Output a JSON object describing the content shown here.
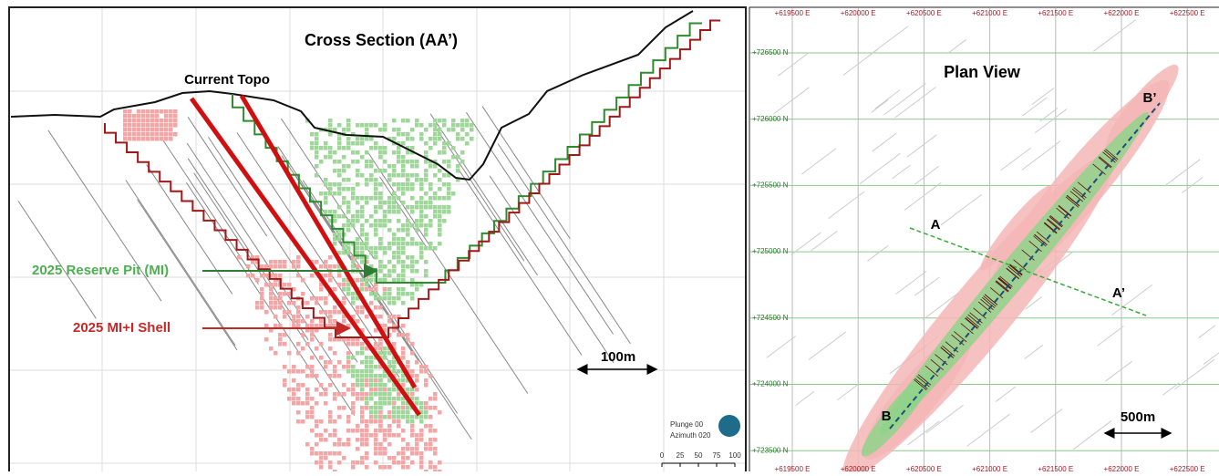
{
  "cross_section": {
    "title": "Cross Section (AA’)",
    "labels": {
      "topo": "Current Topo",
      "reserve_pit": "2025 Reserve Pit (MI)",
      "shell": "2025 MI+I Shell"
    },
    "scale_bar": "100m",
    "plunge": "Plunge 00",
    "azimuth": "Azimuth 020",
    "scale_ticks": [
      0,
      25,
      50,
      75,
      100
    ]
  },
  "plan_view": {
    "title": "Plan View",
    "eastings": [
      "+619500 E",
      "+620000 E",
      "+620500 E",
      "+621000 E",
      "+621500 E",
      "+622000 E",
      "+622500 E"
    ],
    "northings": [
      "+726500 N",
      "+726000 N",
      "+725500 N",
      "+725000 N",
      "+724500 N",
      "+724000 N",
      "+723500 N"
    ],
    "section_labels": {
      "a": "A",
      "a_prime": "A’",
      "b": "B",
      "b_prime": "B’"
    },
    "scale_bar": "500m"
  }
}
